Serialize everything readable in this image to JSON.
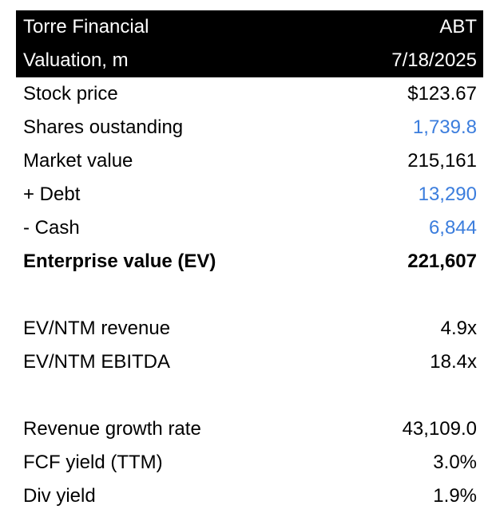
{
  "header": {
    "company": "Torre Financial",
    "ticker": "ABT",
    "subtitle": "Valuation, m",
    "date": "7/18/2025"
  },
  "rows": [
    {
      "label": "Stock price",
      "value": "$123.67",
      "input": false
    },
    {
      "label": "Shares oustanding",
      "value": "1,739.8",
      "input": true
    },
    {
      "label": "Market value",
      "value": "215,161",
      "input": false
    },
    {
      "label": "+ Debt",
      "value": "13,290",
      "input": true
    },
    {
      "label": "- Cash",
      "value": "6,844",
      "input": true
    },
    {
      "label": "Enterprise value (EV)",
      "value": "221,607",
      "input": false
    }
  ],
  "multiples": [
    {
      "label": "EV/NTM revenue",
      "value": "4.9x"
    },
    {
      "label": "EV/NTM EBITDA",
      "value": "18.4x"
    }
  ],
  "metrics": [
    {
      "label": "Revenue growth rate",
      "value": "43,109.0"
    },
    {
      "label": "FCF yield (TTM)",
      "value": "3.0%"
    },
    {
      "label": "Div yield",
      "value": "1.9%"
    }
  ],
  "colors": {
    "header_bg": "#000000",
    "header_text": "#ffffff",
    "input_value": "#3b7ddd"
  }
}
